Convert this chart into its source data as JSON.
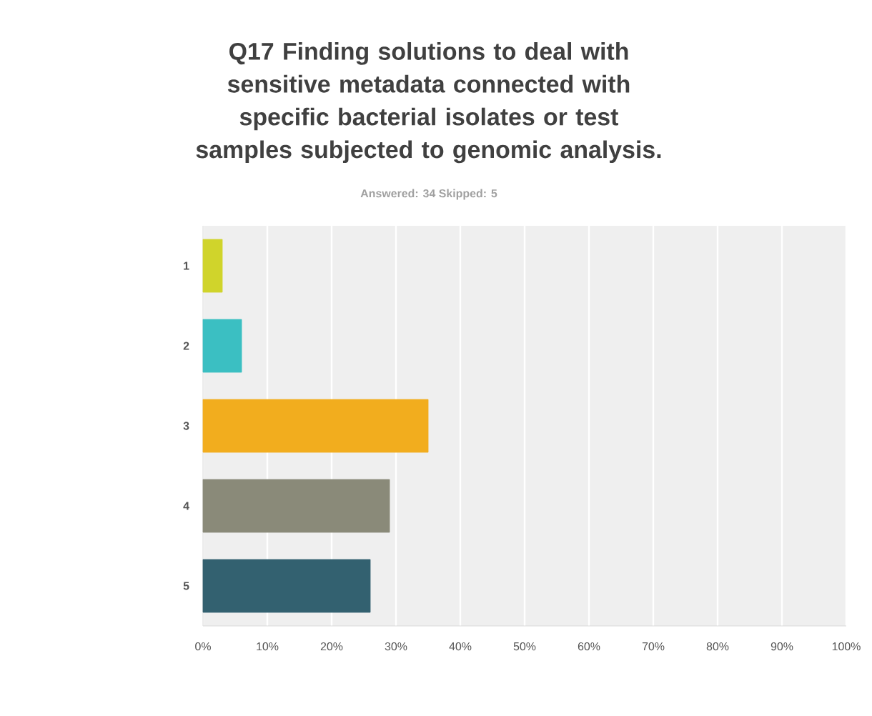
{
  "chart_data": {
    "type": "bar",
    "orientation": "horizontal",
    "title": "Q17 Finding solutions to deal with sensitive metadata connected with specific bacterial isolates or test samples subjected to genomic analysis.",
    "subtitle": "Answered: 34    Skipped: 5",
    "categories": [
      "1",
      "2",
      "3",
      "4",
      "5"
    ],
    "values": [
      3,
      6,
      35,
      29,
      26
    ],
    "colors": [
      "#d0d42b",
      "#3bbfc2",
      "#f2ad1e",
      "#8a8a79",
      "#336170"
    ],
    "xlim": [
      0,
      100
    ],
    "xticks": [
      {
        "value": 0,
        "label": "0%"
      },
      {
        "value": 10,
        "label": "10%"
      },
      {
        "value": 20,
        "label": "20%"
      },
      {
        "value": 30,
        "label": "30%"
      },
      {
        "value": 40,
        "label": "40%"
      },
      {
        "value": 50,
        "label": "50%"
      },
      {
        "value": 60,
        "label": "60%"
      },
      {
        "value": 70,
        "label": "70%"
      },
      {
        "value": 80,
        "label": "80%"
      },
      {
        "value": 90,
        "label": "90%"
      },
      {
        "value": 100,
        "label": "100%"
      }
    ],
    "grid": "x"
  }
}
